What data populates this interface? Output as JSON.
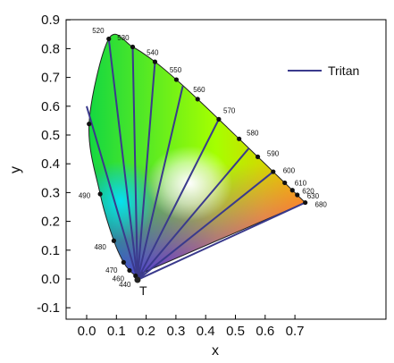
{
  "chart_data": {
    "type": "line",
    "title": "",
    "xlabel": "x",
    "ylabel": "y",
    "xlim": [
      -0.05,
      0.78
    ],
    "ylim": [
      -0.1,
      0.9
    ],
    "x_ticks": [
      "0.0",
      "0.1",
      "0.2",
      "0.3",
      "0.4",
      "0.5",
      "0.6",
      "0.7"
    ],
    "y_ticks": [
      "-0.1",
      "0.0",
      "0.1",
      "0.2",
      "0.3",
      "0.4",
      "0.5",
      "0.6",
      "0.7",
      "0.8",
      "0.9"
    ],
    "grid": false,
    "legend": {
      "position": "top-right",
      "entries": [
        "Tritan"
      ]
    },
    "line_color": "#3a3a8c",
    "copunctal_point": {
      "label": "T",
      "x": 0.171,
      "y": -0.003
    },
    "spectral_locus": [
      {
        "label": "440",
        "x": 0.1644,
        "y": 0.0109
      },
      {
        "label": "460",
        "x": 0.144,
        "y": 0.0297
      },
      {
        "label": "470",
        "x": 0.1241,
        "y": 0.0578
      },
      {
        "label": "480",
        "x": 0.0913,
        "y": 0.1327
      },
      {
        "label": "490",
        "x": 0.0454,
        "y": 0.295
      },
      {
        "label": "",
        "x": 0.0082,
        "y": 0.5384
      },
      {
        "label": "520",
        "x": 0.0743,
        "y": 0.8338
      },
      {
        "label": "530",
        "x": 0.1547,
        "y": 0.8059
      },
      {
        "label": "540",
        "x": 0.2296,
        "y": 0.7543
      },
      {
        "label": "550",
        "x": 0.3016,
        "y": 0.6923
      },
      {
        "label": "560",
        "x": 0.3731,
        "y": 0.6245
      },
      {
        "label": "570",
        "x": 0.4441,
        "y": 0.5547
      },
      {
        "label": "580",
        "x": 0.5125,
        "y": 0.4866
      },
      {
        "label": "590",
        "x": 0.5752,
        "y": 0.4242
      },
      {
        "label": "600",
        "x": 0.627,
        "y": 0.3725
      },
      {
        "label": "610",
        "x": 0.6658,
        "y": 0.334
      },
      {
        "label": "620",
        "x": 0.6915,
        "y": 0.3083
      },
      {
        "label": "630",
        "x": 0.7079,
        "y": 0.292
      },
      {
        "label": "680",
        "x": 0.7347,
        "y": 0.2653
      }
    ],
    "series": [
      {
        "name": "Tritan",
        "lines": [
          {
            "from": [
              0.171,
              -0.003
            ],
            "to": [
              0.0,
              0.6
            ]
          },
          {
            "from": [
              0.171,
              -0.003
            ],
            "to": [
              0.0743,
              0.8338
            ]
          },
          {
            "from": [
              0.171,
              -0.003
            ],
            "to": [
              0.1547,
              0.8059
            ]
          },
          {
            "from": [
              0.171,
              -0.003
            ],
            "to": [
              0.2296,
              0.7543
            ]
          },
          {
            "from": [
              0.171,
              -0.003
            ],
            "to": [
              0.3231,
              0.67
            ]
          },
          {
            "from": [
              0.171,
              -0.003
            ],
            "to": [
              0.4441,
              0.5547
            ]
          },
          {
            "from": [
              0.171,
              -0.003
            ],
            "to": [
              0.5452,
              0.454
            ]
          },
          {
            "from": [
              0.171,
              -0.003
            ],
            "to": [
              0.627,
              0.3725
            ]
          },
          {
            "from": [
              0.171,
              -0.003
            ],
            "to": [
              0.7347,
              0.2653
            ]
          }
        ]
      }
    ]
  }
}
